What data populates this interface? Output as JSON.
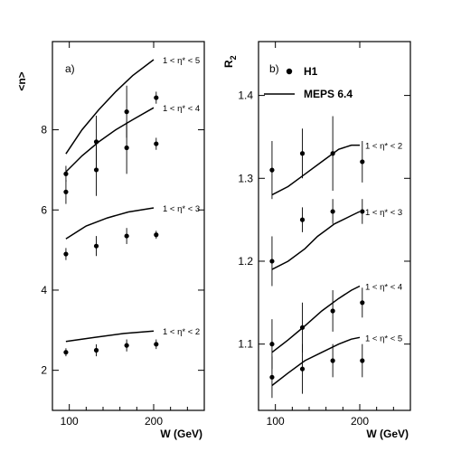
{
  "chart_data": [
    {
      "panel": "a",
      "panel_tag": "a)",
      "type": "scatter",
      "ylabel": "<n>",
      "xlabel": "W (GeV)",
      "xlim": [
        80,
        260
      ],
      "ylim": [
        1,
        10.2
      ],
      "x_ticks": [
        100,
        200
      ],
      "y_ticks": [
        2,
        4,
        6,
        8
      ],
      "y_tick_labels": [
        "2",
        "4",
        "6",
        "8"
      ],
      "series": [
        {
          "label": "1 < η* < 5",
          "data": [
            {
              "x": 96,
              "y": 6.9,
              "err": 0.2
            },
            {
              "x": 132,
              "y": 7.7,
              "err": 0.65
            },
            {
              "x": 168,
              "y": 8.45,
              "err": 0.65
            },
            {
              "x": 203,
              "y": 8.8,
              "err": 0.15
            }
          ],
          "model": [
            [
              96,
              7.4
            ],
            [
              115,
              8.0
            ],
            [
              135,
              8.5
            ],
            [
              155,
              8.95
            ],
            [
              175,
              9.35
            ],
            [
              200,
              9.75
            ]
          ]
        },
        {
          "label": "1 < η* < 4",
          "data": [
            {
              "x": 96,
              "y": 6.45,
              "err": 0.3
            },
            {
              "x": 132,
              "y": 7.0,
              "err": 0.65
            },
            {
              "x": 168,
              "y": 7.55,
              "err": 0.65
            },
            {
              "x": 203,
              "y": 7.65,
              "err": 0.15
            }
          ],
          "model": [
            [
              96,
              6.95
            ],
            [
              115,
              7.35
            ],
            [
              135,
              7.7
            ],
            [
              155,
              8.0
            ],
            [
              175,
              8.25
            ],
            [
              200,
              8.55
            ]
          ]
        },
        {
          "label": "1 < η* < 3",
          "data": [
            {
              "x": 96,
              "y": 4.9,
              "err": 0.15
            },
            {
              "x": 132,
              "y": 5.1,
              "err": 0.25
            },
            {
              "x": 168,
              "y": 5.35,
              "err": 0.2
            },
            {
              "x": 203,
              "y": 5.38,
              "err": 0.1
            }
          ],
          "model": [
            [
              96,
              5.28
            ],
            [
              120,
              5.6
            ],
            [
              145,
              5.8
            ],
            [
              170,
              5.95
            ],
            [
              200,
              6.05
            ]
          ]
        },
        {
          "label": "1 < η* < 2",
          "data": [
            {
              "x": 96,
              "y": 2.45,
              "err": 0.1
            },
            {
              "x": 132,
              "y": 2.5,
              "err": 0.15
            },
            {
              "x": 168,
              "y": 2.62,
              "err": 0.15
            },
            {
              "x": 203,
              "y": 2.65,
              "err": 0.12
            }
          ],
          "model": [
            [
              96,
              2.72
            ],
            [
              130,
              2.82
            ],
            [
              165,
              2.92
            ],
            [
              200,
              2.98
            ]
          ]
        }
      ]
    },
    {
      "panel": "b",
      "panel_tag": "b)",
      "type": "scatter",
      "ylabel": "R",
      "ylabel_sub": "2",
      "xlabel": "W (GeV)",
      "xlim": [
        80,
        260
      ],
      "ylim": [
        1.02,
        1.465
      ],
      "x_ticks": [
        100,
        200
      ],
      "y_ticks": [
        1.1,
        1.2,
        1.3,
        1.4
      ],
      "y_tick_labels": [
        "1.1",
        "1.2",
        "1.3",
        "1.4"
      ],
      "legend": {
        "data_label": "H1",
        "model_label": "MEPS 6.4",
        "placement": "top-left"
      },
      "series": [
        {
          "label": "1 < η* < 2",
          "data": [
            {
              "x": 96,
              "y": 1.31,
              "err": 0.035
            },
            {
              "x": 132,
              "y": 1.33,
              "err": 0.03
            },
            {
              "x": 168,
              "y": 1.33,
              "err": 0.045
            },
            {
              "x": 203,
              "y": 1.32,
              "err": 0.025
            }
          ],
          "model": [
            [
              96,
              1.28
            ],
            [
              115,
              1.29
            ],
            [
              135,
              1.305
            ],
            [
              155,
              1.32
            ],
            [
              175,
              1.335
            ],
            [
              190,
              1.34
            ],
            [
              200,
              1.34
            ]
          ]
        },
        {
          "label": "1 < η* < 3",
          "data": [
            {
              "x": 96,
              "y": 1.2,
              "err": 0.03
            },
            {
              "x": 132,
              "y": 1.25,
              "err": 0.015
            },
            {
              "x": 168,
              "y": 1.26,
              "err": 0.015
            },
            {
              "x": 203,
              "y": 1.26,
              "err": 0.015
            }
          ],
          "model": [
            [
              96,
              1.19
            ],
            [
              115,
              1.2
            ],
            [
              135,
              1.215
            ],
            [
              150,
              1.23
            ],
            [
              170,
              1.245
            ],
            [
              190,
              1.255
            ],
            [
              200,
              1.26
            ]
          ]
        },
        {
          "label": "1 < η* < 4",
          "data": [
            {
              "x": 96,
              "y": 1.1,
              "err": 0.03
            },
            {
              "x": 132,
              "y": 1.12,
              "err": 0.03
            },
            {
              "x": 168,
              "y": 1.14,
              "err": 0.025
            },
            {
              "x": 203,
              "y": 1.15,
              "err": 0.018
            }
          ],
          "model": [
            [
              96,
              1.09
            ],
            [
              115,
              1.105
            ],
            [
              135,
              1.122
            ],
            [
              155,
              1.14
            ],
            [
              175,
              1.155
            ],
            [
              190,
              1.165
            ],
            [
              200,
              1.17
            ]
          ]
        },
        {
          "label": "1 < η* < 5",
          "data": [
            {
              "x": 96,
              "y": 1.06,
              "err": 0.025
            },
            {
              "x": 132,
              "y": 1.07,
              "err": 0.03
            },
            {
              "x": 168,
              "y": 1.08,
              "err": 0.02
            },
            {
              "x": 203,
              "y": 1.08,
              "err": 0.02
            }
          ],
          "model": [
            [
              96,
              1.05
            ],
            [
              115,
              1.065
            ],
            [
              135,
              1.08
            ],
            [
              155,
              1.09
            ],
            [
              175,
              1.1
            ],
            [
              190,
              1.106
            ],
            [
              200,
              1.108
            ]
          ]
        }
      ]
    }
  ]
}
